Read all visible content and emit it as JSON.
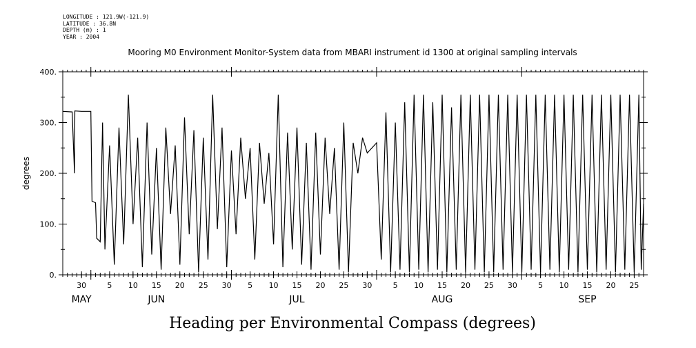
{
  "meta": {
    "longitude": "LONGITUDE : 121.9W(-121.9)",
    "latitude": "LATITUDE : 36.8N",
    "depth": "DEPTH (m) : 1",
    "year": "YEAR : 2004"
  },
  "chart_data": {
    "type": "line",
    "title": "Mooring M0 Environment Monitor-System data from MBARI instrument id 1300 at original sampling intervals",
    "bottom_title": "Heading per Environmental Compass (degrees)",
    "ylabel": "degrees",
    "xlabel": "",
    "ylim": [
      0,
      400
    ],
    "y_ticks": [
      "0.",
      "100.",
      "200.",
      "300.",
      "400."
    ],
    "x_range": [
      "2004-05-26",
      "2004-09-27"
    ],
    "x_day_ticks": [
      {
        "date": "2004-05-30",
        "label": "30"
      },
      {
        "date": "2004-06-05",
        "label": "5"
      },
      {
        "date": "2004-06-10",
        "label": "10"
      },
      {
        "date": "2004-06-15",
        "label": "15"
      },
      {
        "date": "2004-06-20",
        "label": "20"
      },
      {
        "date": "2004-06-25",
        "label": "25"
      },
      {
        "date": "2004-06-30",
        "label": "30"
      },
      {
        "date": "2004-07-05",
        "label": "5"
      },
      {
        "date": "2004-07-10",
        "label": "10"
      },
      {
        "date": "2004-07-15",
        "label": "15"
      },
      {
        "date": "2004-07-20",
        "label": "20"
      },
      {
        "date": "2004-07-25",
        "label": "25"
      },
      {
        "date": "2004-07-30",
        "label": "30"
      },
      {
        "date": "2004-08-05",
        "label": "5"
      },
      {
        "date": "2004-08-10",
        "label": "10"
      },
      {
        "date": "2004-08-15",
        "label": "15"
      },
      {
        "date": "2004-08-20",
        "label": "20"
      },
      {
        "date": "2004-08-25",
        "label": "25"
      },
      {
        "date": "2004-08-30",
        "label": "30"
      },
      {
        "date": "2004-09-05",
        "label": "5"
      },
      {
        "date": "2004-09-10",
        "label": "10"
      },
      {
        "date": "2004-09-15",
        "label": "15"
      },
      {
        "date": "2004-09-20",
        "label": "20"
      },
      {
        "date": "2004-09-25",
        "label": "25"
      }
    ],
    "x_month_labels": [
      {
        "date": "2004-05-30",
        "label": "MAY"
      },
      {
        "date": "2004-06-15",
        "label": "JUN"
      },
      {
        "date": "2004-07-15",
        "label": "JUL"
      },
      {
        "date": "2004-08-15",
        "label": "AUG"
      },
      {
        "date": "2004-09-15",
        "label": "SEP"
      }
    ],
    "x_month_starts": [
      "2004-06-01",
      "2004-07-01",
      "2004-08-01",
      "2004-09-01"
    ],
    "grid": false,
    "series": [
      {
        "values": [
          {
            "x": "2004-05-26",
            "y": 322
          },
          {
            "x": "2004-05-28",
            "y": 321
          },
          {
            "x": "2004-05-28T12",
            "y": 200
          },
          {
            "x": "2004-05-28T14",
            "y": 323
          },
          {
            "x": "2004-05-30",
            "y": 322
          },
          {
            "x": "2004-06-01",
            "y": 322
          },
          {
            "x": "2004-06-01T06",
            "y": 145
          },
          {
            "x": "2004-06-02",
            "y": 142
          },
          {
            "x": "2004-06-02T06",
            "y": 72
          },
          {
            "x": "2004-06-03",
            "y": 65
          },
          {
            "x": "2004-06-03T12",
            "y": 300
          },
          {
            "x": "2004-06-04",
            "y": 50
          },
          {
            "x": "2004-06-05",
            "y": 255
          },
          {
            "x": "2004-06-06",
            "y": 20
          },
          {
            "x": "2004-06-07",
            "y": 290
          },
          {
            "x": "2004-06-08",
            "y": 60
          },
          {
            "x": "2004-06-09",
            "y": 355
          },
          {
            "x": "2004-06-10",
            "y": 100
          },
          {
            "x": "2004-06-11",
            "y": 270
          },
          {
            "x": "2004-06-12",
            "y": 15
          },
          {
            "x": "2004-06-13",
            "y": 300
          },
          {
            "x": "2004-06-14",
            "y": 40
          },
          {
            "x": "2004-06-15",
            "y": 250
          },
          {
            "x": "2004-06-16",
            "y": 10
          },
          {
            "x": "2004-06-17",
            "y": 290
          },
          {
            "x": "2004-06-18",
            "y": 120
          },
          {
            "x": "2004-06-19",
            "y": 255
          },
          {
            "x": "2004-06-20",
            "y": 20
          },
          {
            "x": "2004-06-21",
            "y": 310
          },
          {
            "x": "2004-06-22",
            "y": 80
          },
          {
            "x": "2004-06-23",
            "y": 285
          },
          {
            "x": "2004-06-24",
            "y": 5
          },
          {
            "x": "2004-06-25",
            "y": 270
          },
          {
            "x": "2004-06-26",
            "y": 30
          },
          {
            "x": "2004-06-27",
            "y": 355
          },
          {
            "x": "2004-06-28",
            "y": 90
          },
          {
            "x": "2004-06-29",
            "y": 290
          },
          {
            "x": "2004-06-30",
            "y": 15
          },
          {
            "x": "2004-07-01",
            "y": 245
          },
          {
            "x": "2004-07-02",
            "y": 80
          },
          {
            "x": "2004-07-03",
            "y": 270
          },
          {
            "x": "2004-07-04",
            "y": 150
          },
          {
            "x": "2004-07-05",
            "y": 250
          },
          {
            "x": "2004-07-06",
            "y": 30
          },
          {
            "x": "2004-07-07",
            "y": 260
          },
          {
            "x": "2004-07-08",
            "y": 140
          },
          {
            "x": "2004-07-09",
            "y": 240
          },
          {
            "x": "2004-07-10",
            "y": 60
          },
          {
            "x": "2004-07-11",
            "y": 355
          },
          {
            "x": "2004-07-12",
            "y": 15
          },
          {
            "x": "2004-07-13",
            "y": 280
          },
          {
            "x": "2004-07-14",
            "y": 50
          },
          {
            "x": "2004-07-15",
            "y": 290
          },
          {
            "x": "2004-07-16",
            "y": 20
          },
          {
            "x": "2004-07-17",
            "y": 260
          },
          {
            "x": "2004-07-18",
            "y": 10
          },
          {
            "x": "2004-07-19",
            "y": 280
          },
          {
            "x": "2004-07-20",
            "y": 40
          },
          {
            "x": "2004-07-21",
            "y": 270
          },
          {
            "x": "2004-07-22",
            "y": 120
          },
          {
            "x": "2004-07-23",
            "y": 250
          },
          {
            "x": "2004-07-24",
            "y": 10
          },
          {
            "x": "2004-07-25",
            "y": 300
          },
          {
            "x": "2004-07-26",
            "y": 5
          },
          {
            "x": "2004-07-27",
            "y": 260
          },
          {
            "x": "2004-07-28",
            "y": 200
          },
          {
            "x": "2004-07-29",
            "y": 270
          },
          {
            "x": "2004-07-30",
            "y": 240
          },
          {
            "x": "2004-08-01",
            "y": 260
          },
          {
            "x": "2004-08-02",
            "y": 30
          },
          {
            "x": "2004-08-03",
            "y": 320
          },
          {
            "x": "2004-08-04",
            "y": 5
          },
          {
            "x": "2004-08-05",
            "y": 300
          },
          {
            "x": "2004-08-06",
            "y": 10
          },
          {
            "x": "2004-08-07",
            "y": 340
          },
          {
            "x": "2004-08-08",
            "y": 5
          },
          {
            "x": "2004-08-09",
            "y": 355
          },
          {
            "x": "2004-08-10",
            "y": 10
          },
          {
            "x": "2004-08-11",
            "y": 355
          },
          {
            "x": "2004-08-12",
            "y": 5
          },
          {
            "x": "2004-08-13",
            "y": 340
          },
          {
            "x": "2004-08-14",
            "y": 10
          },
          {
            "x": "2004-08-15",
            "y": 355
          },
          {
            "x": "2004-08-16",
            "y": 5
          },
          {
            "x": "2004-08-17",
            "y": 330
          },
          {
            "x": "2004-08-18",
            "y": 10
          },
          {
            "x": "2004-08-19",
            "y": 355
          },
          {
            "x": "2004-08-20",
            "y": 5
          },
          {
            "x": "2004-08-21",
            "y": 355
          },
          {
            "x": "2004-08-22",
            "y": 10
          },
          {
            "x": "2004-08-23",
            "y": 355
          },
          {
            "x": "2004-08-24",
            "y": 5
          },
          {
            "x": "2004-08-25",
            "y": 355
          },
          {
            "x": "2004-08-26",
            "y": 5
          },
          {
            "x": "2004-08-27",
            "y": 355
          },
          {
            "x": "2004-08-28",
            "y": 10
          },
          {
            "x": "2004-08-29",
            "y": 355
          },
          {
            "x": "2004-08-30",
            "y": 5
          },
          {
            "x": "2004-08-31",
            "y": 355
          },
          {
            "x": "2004-09-01",
            "y": 5
          },
          {
            "x": "2004-09-02",
            "y": 355
          },
          {
            "x": "2004-09-03",
            "y": 10
          },
          {
            "x": "2004-09-04",
            "y": 355
          },
          {
            "x": "2004-09-05",
            "y": 5
          },
          {
            "x": "2004-09-06",
            "y": 355
          },
          {
            "x": "2004-09-07",
            "y": 10
          },
          {
            "x": "2004-09-08",
            "y": 355
          },
          {
            "x": "2004-09-09",
            "y": 5
          },
          {
            "x": "2004-09-10",
            "y": 355
          },
          {
            "x": "2004-09-11",
            "y": 10
          },
          {
            "x": "2004-09-12",
            "y": 355
          },
          {
            "x": "2004-09-13",
            "y": 5
          },
          {
            "x": "2004-09-14",
            "y": 355
          },
          {
            "x": "2004-09-15",
            "y": 10
          },
          {
            "x": "2004-09-16",
            "y": 355
          },
          {
            "x": "2004-09-17",
            "y": 5
          },
          {
            "x": "2004-09-18",
            "y": 355
          },
          {
            "x": "2004-09-19",
            "y": 10
          },
          {
            "x": "2004-09-20",
            "y": 355
          },
          {
            "x": "2004-09-21",
            "y": 5
          },
          {
            "x": "2004-09-22",
            "y": 355
          },
          {
            "x": "2004-09-23",
            "y": 10
          },
          {
            "x": "2004-09-24",
            "y": 355
          },
          {
            "x": "2004-09-25",
            "y": 5
          },
          {
            "x": "2004-09-26",
            "y": 355
          },
          {
            "x": "2004-09-26T12",
            "y": 10
          },
          {
            "x": "2004-09-27",
            "y": 140
          }
        ]
      }
    ]
  }
}
